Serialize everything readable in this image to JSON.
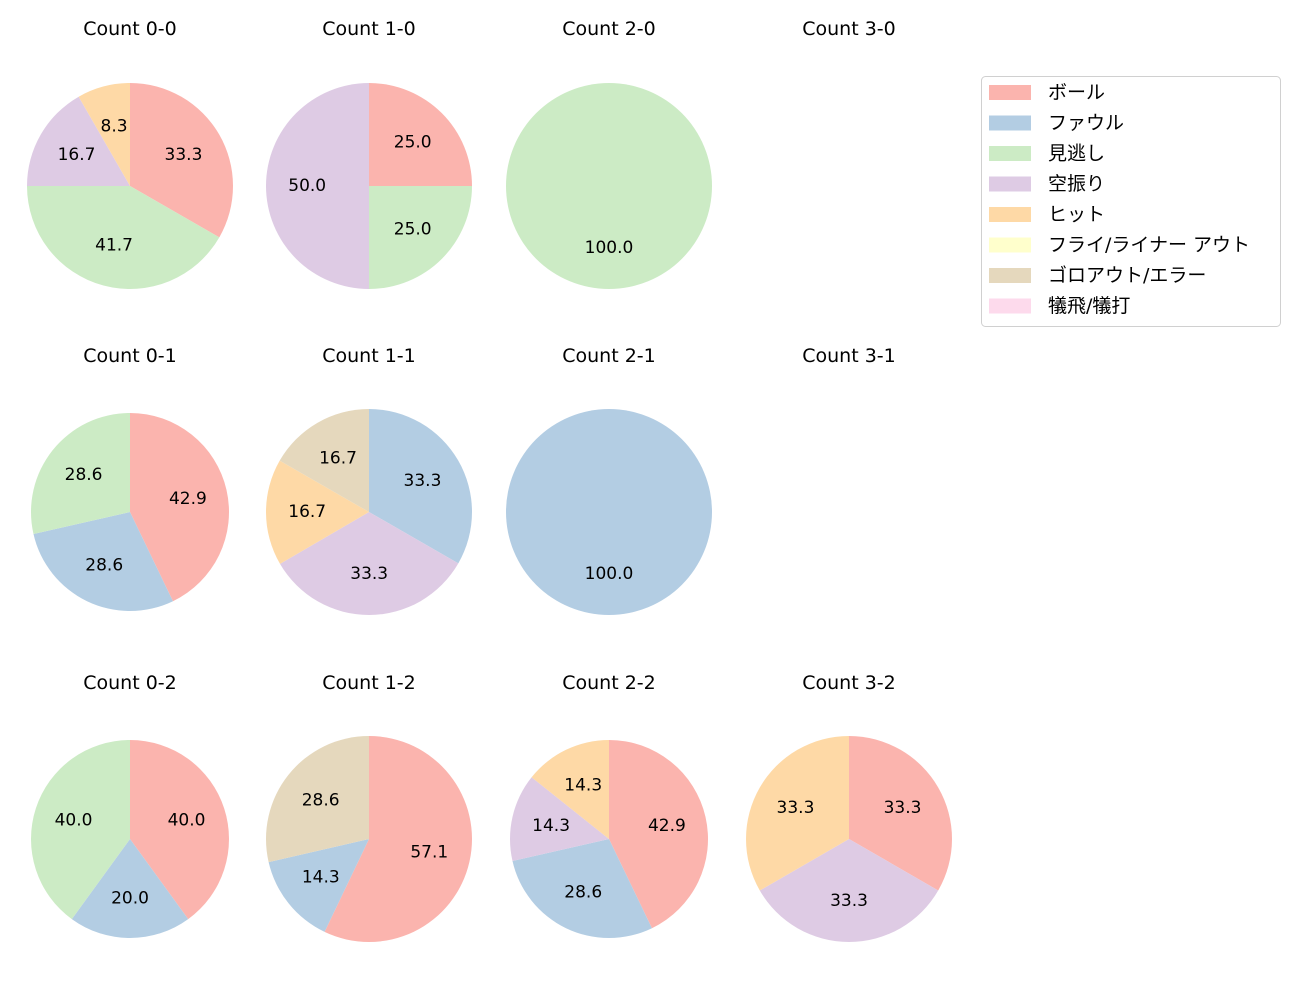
{
  "chart_data": {
    "type": "pie",
    "legend": {
      "placement": "top-right",
      "entries": [
        "ボール",
        "ファウル",
        "見逃し",
        "空振り",
        "ヒット",
        "フライ/ライナー アウト",
        "ゴロアウト/エラー",
        "犠飛/犠打"
      ]
    },
    "colors": [
      "#fbb4ae",
      "#b3cde3",
      "#ccebc5",
      "#decbe4",
      "#fed9a6",
      "#ffffcc",
      "#e5d8bd",
      "#fddaec"
    ],
    "start_angle_deg": 90,
    "direction": "clockwise",
    "subplots": [
      {
        "title": "Count 0-0",
        "values": [
          33.3,
          0,
          41.7,
          16.7,
          8.3,
          0,
          0,
          0
        ]
      },
      {
        "title": "Count 1-0",
        "values": [
          25.0,
          0,
          25.0,
          50.0,
          0,
          0,
          0,
          0
        ]
      },
      {
        "title": "Count 2-0",
        "values": [
          0,
          0,
          100.0,
          0,
          0,
          0,
          0,
          0
        ]
      },
      {
        "title": "Count 3-0",
        "values": []
      },
      {
        "title": "Count 0-1",
        "values": [
          42.9,
          28.6,
          28.6,
          0,
          0,
          0,
          0,
          0
        ]
      },
      {
        "title": "Count 1-1",
        "values": [
          0,
          33.3,
          0,
          33.3,
          16.7,
          0,
          16.7,
          0
        ]
      },
      {
        "title": "Count 2-1",
        "values": [
          0,
          100.0,
          0,
          0,
          0,
          0,
          0,
          0
        ]
      },
      {
        "title": "Count 3-1",
        "values": []
      },
      {
        "title": "Count 0-2",
        "values": [
          40.0,
          20.0,
          40.0,
          0,
          0,
          0,
          0,
          0
        ]
      },
      {
        "title": "Count 1-2",
        "values": [
          57.1,
          14.3,
          0,
          0,
          0,
          0,
          28.6,
          0
        ]
      },
      {
        "title": "Count 2-2",
        "values": [
          42.9,
          28.6,
          0,
          14.3,
          14.3,
          0,
          0,
          0
        ]
      },
      {
        "title": "Count 3-2",
        "values": [
          33.3,
          0,
          0,
          33.3,
          33.3,
          0,
          0,
          0
        ]
      }
    ]
  }
}
